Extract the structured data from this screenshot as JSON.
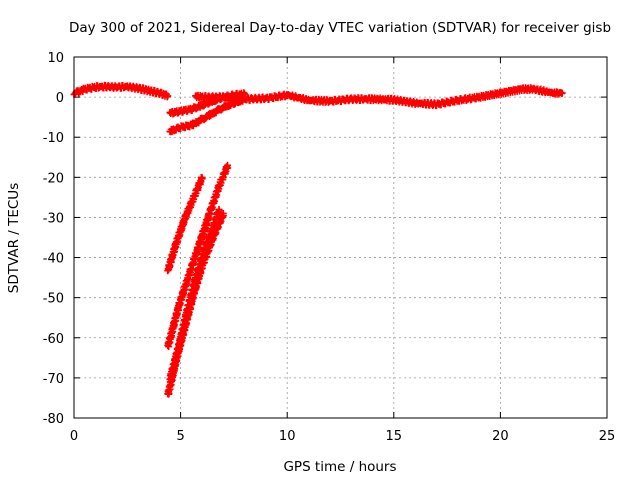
{
  "chart_data": {
    "type": "scatter",
    "title": "Day 300 of 2021, Sidereal Day-to-day VTEC variation (SDTVAR) for receiver gisb",
    "xlabel": "GPS time / hours",
    "ylabel": "SDTVAR / TECUs",
    "xlim": [
      0,
      25
    ],
    "ylim": [
      -80,
      10
    ],
    "xticks": [
      0,
      5,
      10,
      15,
      20,
      25
    ],
    "yticks": [
      10,
      0,
      -10,
      -20,
      -30,
      -40,
      -50,
      -60,
      -70,
      -80
    ],
    "grid": true,
    "marker": "+",
    "color": "#ff0000",
    "series": [
      {
        "name": "main-trace",
        "x": [
          0.0,
          0.5,
          1.0,
          1.5,
          2.0,
          2.5,
          3.0,
          3.5,
          4.0,
          4.4
        ],
        "y": [
          1.0,
          2.0,
          2.5,
          2.6,
          2.5,
          2.6,
          2.2,
          1.6,
          1.0,
          0.3
        ]
      },
      {
        "name": "main-trace-2",
        "x": [
          5.7,
          6.0,
          7.0,
          8.0,
          9.0,
          10.0,
          11.0,
          12.0,
          13.0,
          14.0,
          15.0,
          16.0,
          17.0,
          18.0,
          19.0,
          20.0,
          21.0,
          21.5,
          22.0,
          22.5,
          22.9
        ],
        "y": [
          0.2,
          0.0,
          0.0,
          -0.5,
          -0.3,
          0.5,
          -0.8,
          -1.0,
          -0.5,
          -0.5,
          -0.7,
          -1.5,
          -1.8,
          -0.8,
          0.0,
          1.0,
          2.0,
          2.0,
          1.5,
          1.0,
          1.0
        ]
      },
      {
        "name": "branch-upper",
        "x": [
          4.5,
          5.0,
          5.5,
          6.0,
          6.5,
          7.0,
          7.5,
          8.0
        ],
        "y": [
          -4.0,
          -3.5,
          -3.0,
          -2.0,
          -1.0,
          0.0,
          0.5,
          0.8
        ]
      },
      {
        "name": "branch-lower",
        "x": [
          4.5,
          5.0,
          5.5,
          6.0,
          6.5,
          7.0,
          7.5,
          8.0
        ],
        "y": [
          -8.5,
          -7.5,
          -7.0,
          -5.5,
          -4.0,
          -2.5,
          -1.5,
          -0.5
        ]
      },
      {
        "name": "steep-1",
        "x": [
          4.4,
          4.8,
          5.2,
          5.6,
          6.0
        ],
        "y": [
          -43,
          -36,
          -30,
          -25,
          -20
        ]
      },
      {
        "name": "steep-2",
        "x": [
          4.4,
          4.9,
          5.4,
          5.9,
          6.4,
          6.8,
          7.2
        ],
        "y": [
          -62,
          -52,
          -44,
          -36,
          -28,
          -22,
          -17
        ]
      },
      {
        "name": "steep-3",
        "x": [
          4.4,
          4.8,
          5.2,
          5.6,
          6.0,
          6.5,
          7.0
        ],
        "y": [
          -74,
          -65,
          -57,
          -49,
          -42,
          -35,
          -29
        ]
      },
      {
        "name": "steep-4",
        "x": [
          4.5,
          4.9,
          5.3,
          5.7,
          6.1,
          6.5,
          6.8
        ],
        "y": [
          -70,
          -62,
          -53,
          -45,
          -38,
          -32,
          -28
        ]
      }
    ]
  }
}
